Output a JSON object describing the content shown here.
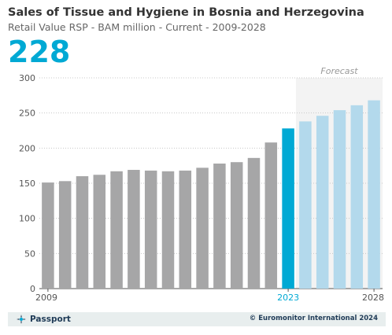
{
  "header": {
    "title": "Sales of Tissue and Hygiene in Bosnia and Herzegovina",
    "subtitle": "Retail Value RSP - BAM million - Current - 2009-2028",
    "highlight_value": "228"
  },
  "footer": {
    "logo_text": "Passport",
    "copyright": "© Euromonitor International 2024"
  },
  "colors": {
    "historic": "#a6a6a7",
    "current": "#00a9d4",
    "forecast": "#b3d9ec",
    "forecast_bg": "#f3f3f3",
    "accent_text": "#00a9d4"
  },
  "chart_data": {
    "type": "bar",
    "categories": [
      "2009",
      "2010",
      "2011",
      "2012",
      "2013",
      "2014",
      "2015",
      "2016",
      "2017",
      "2018",
      "2019",
      "2020",
      "2021",
      "2022",
      "2023",
      "2024",
      "2025",
      "2026",
      "2027",
      "2028"
    ],
    "values": [
      151,
      153,
      160,
      162,
      167,
      169,
      168,
      167,
      168,
      172,
      178,
      180,
      186,
      208,
      228,
      238,
      246,
      254,
      261,
      268
    ],
    "current_year": "2023",
    "forecast_start": "2024",
    "forecast_label": "Forecast",
    "ylim": [
      0,
      300
    ],
    "yticks": [
      0,
      50,
      100,
      150,
      200,
      250,
      300
    ],
    "xtick_labels": [
      "2009",
      "2023",
      "2028"
    ],
    "grid": true
  }
}
